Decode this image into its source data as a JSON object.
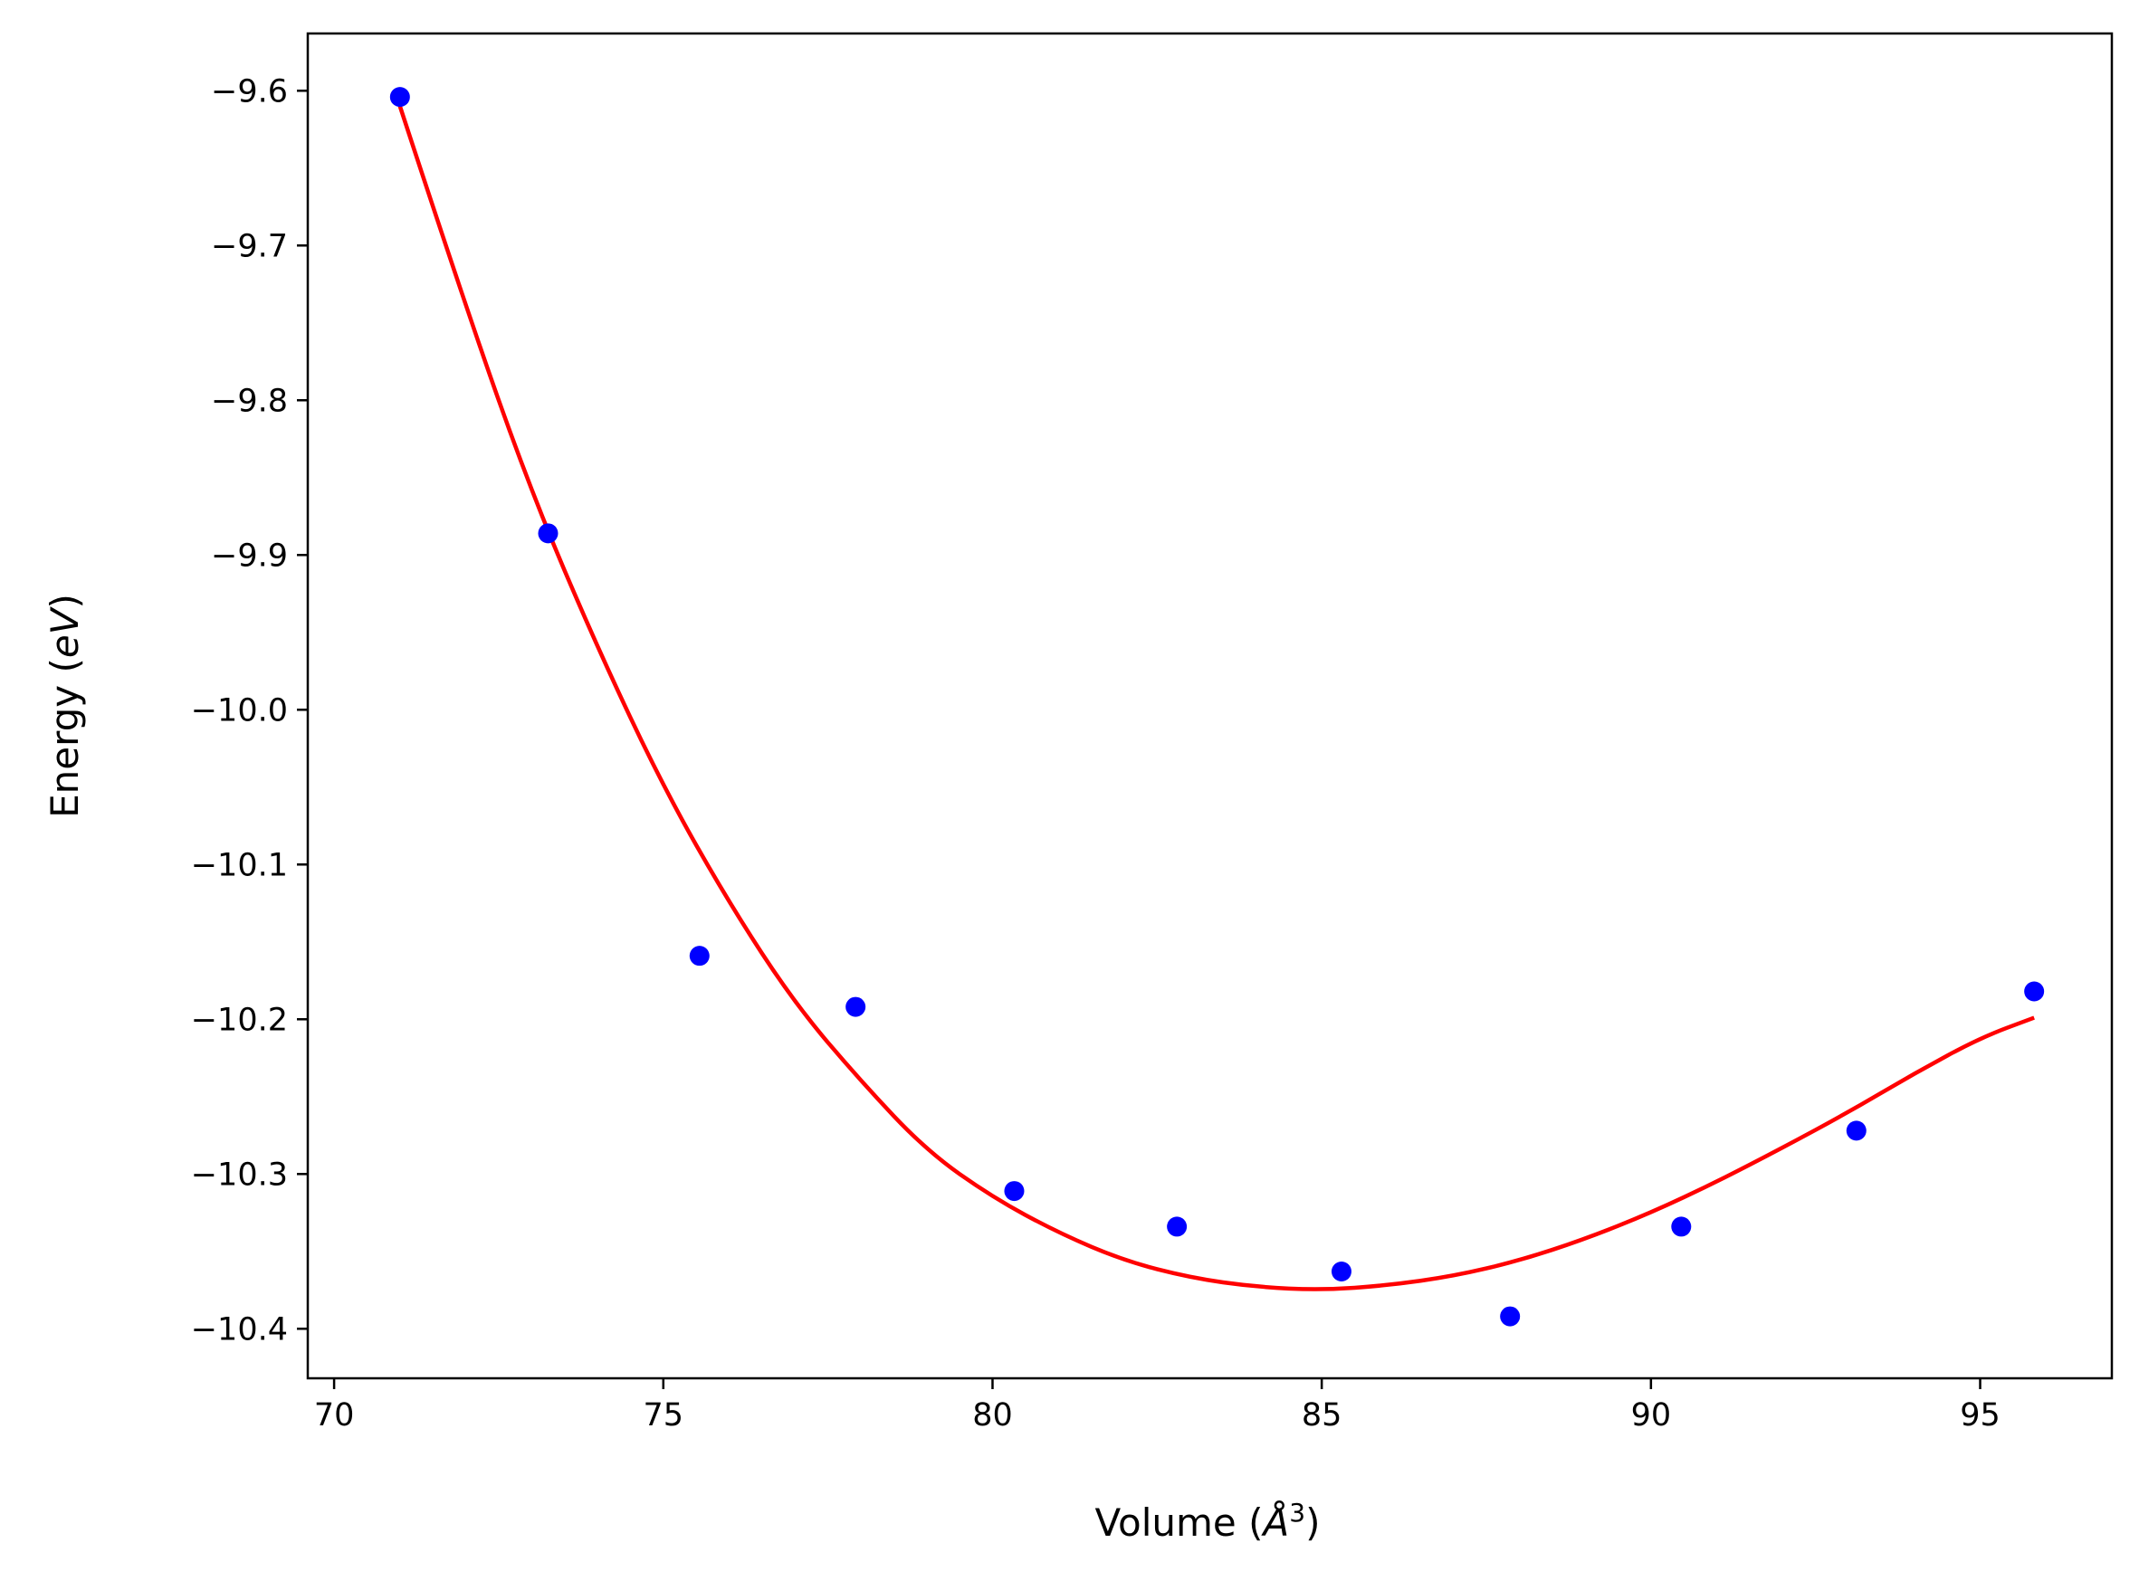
{
  "chart_data": {
    "type": "scatter",
    "title": "",
    "xlabel": "Volume (Å³)",
    "xlabel_parts": {
      "before": "Volume (",
      "italic": "Å",
      "sup": "3",
      "after": ")"
    },
    "ylabel": "Energy (eV)",
    "ylabel_parts": {
      "before": "Energy (",
      "italic": "eV",
      "after": ")"
    },
    "xlim": [
      69.6,
      97.0
    ],
    "ylim": [
      -10.432,
      -9.563
    ],
    "grid": false,
    "legend": "none",
    "x_ticks": [
      70,
      75,
      80,
      85,
      90,
      95
    ],
    "x_tick_labels": [
      "70",
      "75",
      "80",
      "85",
      "90",
      "95"
    ],
    "y_ticks": [
      -9.6,
      -9.7,
      -9.8,
      -9.9,
      -10.0,
      -10.1,
      -10.2,
      -10.3,
      -10.4
    ],
    "y_tick_labels": [
      "−9.6",
      "−9.7",
      "−9.8",
      "−9.9",
      "−10.0",
      "−10.1",
      "−10.2",
      "−10.3",
      "−10.4"
    ],
    "series": [
      {
        "kind": "scatter",
        "color": "#0000ff",
        "x": [
          71.0,
          73.25,
          75.55,
          77.92,
          80.33,
          82.8,
          85.3,
          87.86,
          90.46,
          93.12,
          95.82
        ],
        "y": [
          -9.604,
          -9.886,
          -10.159,
          -10.192,
          -10.311,
          -10.334,
          -10.363,
          -10.392,
          -10.334,
          -10.272,
          -10.182
        ]
      },
      {
        "kind": "fit-line",
        "color": "#ff0000",
        "x": [
          71.0,
          72.0,
          73.0,
          74.0,
          75.0,
          76.0,
          77.0,
          78.0,
          79.0,
          80.0,
          81.0,
          82.0,
          83.0,
          84.0,
          85.0,
          86.0,
          87.0,
          88.0,
          89.0,
          90.0,
          91.0,
          92.0,
          93.0,
          94.0,
          95.0,
          95.82
        ],
        "y": [
          -9.61,
          -9.74,
          -9.86,
          -9.96,
          -10.05,
          -10.125,
          -10.19,
          -10.24,
          -10.285,
          -10.315,
          -10.338,
          -10.356,
          -10.367,
          -10.373,
          -10.375,
          -10.372,
          -10.366,
          -10.356,
          -10.342,
          -10.325,
          -10.305,
          -10.283,
          -10.26,
          -10.235,
          -10.212,
          -10.199
        ]
      }
    ]
  }
}
